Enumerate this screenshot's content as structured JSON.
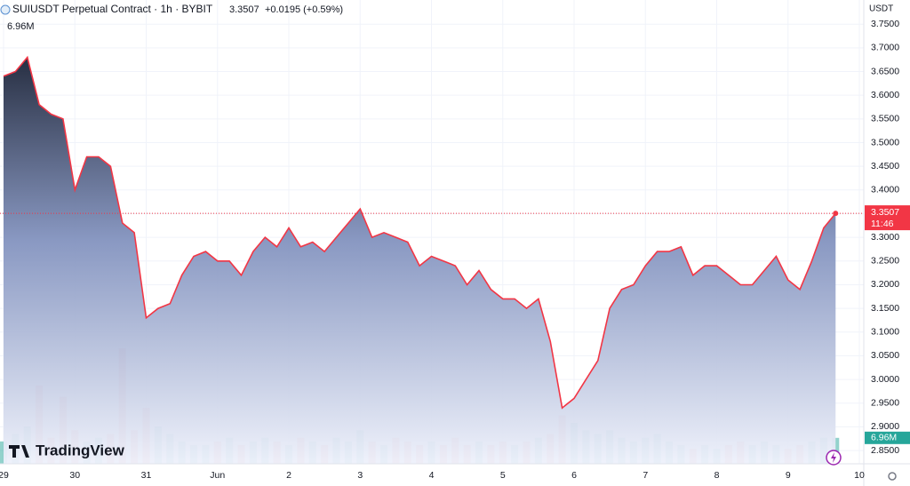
{
  "chart_data": {
    "type": "area",
    "title": "SUIUSDT Perpetual Contract · 1h · BYBIT",
    "change": "+0.0195 (+0.59%)",
    "price_unit": "USDT",
    "countdown": "11:46",
    "brand": "TradingView",
    "color": "#f23645",
    "grid": true,
    "categories": [
      "29",
      null,
      null,
      null,
      null,
      null,
      "30",
      null,
      null,
      null,
      null,
      null,
      "31",
      null,
      null,
      null,
      null,
      null,
      "Jun",
      null,
      null,
      null,
      null,
      null,
      "2",
      null,
      null,
      null,
      null,
      null,
      "3",
      null,
      null,
      null,
      null,
      null,
      "4",
      null,
      null,
      null,
      null,
      null,
      "5",
      null,
      null,
      null,
      null,
      null,
      "6",
      null,
      null,
      null,
      null,
      null,
      "7",
      null,
      null,
      null,
      null,
      null,
      "8",
      null,
      null,
      null,
      null,
      null,
      "9",
      null,
      null,
      null,
      null,
      null,
      "10"
    ],
    "values": [
      3.64,
      3.65,
      3.68,
      3.58,
      3.56,
      3.55,
      3.4,
      3.47,
      3.47,
      3.45,
      3.33,
      3.31,
      3.13,
      3.15,
      3.16,
      3.22,
      3.26,
      3.27,
      3.25,
      3.25,
      3.22,
      3.27,
      3.3,
      3.28,
      3.32,
      3.28,
      3.29,
      3.27,
      3.3,
      3.33,
      3.36,
      3.3,
      3.31,
      3.3,
      3.29,
      3.24,
      3.26,
      3.25,
      3.24,
      3.2,
      3.23,
      3.19,
      3.17,
      3.17,
      3.15,
      3.17,
      3.08,
      2.94,
      2.96,
      3.0,
      3.04,
      3.15,
      3.19,
      3.2,
      3.24,
      3.27,
      3.27,
      3.28,
      3.22,
      3.24,
      3.24,
      3.22,
      3.2,
      3.2,
      3.23,
      3.26,
      3.21,
      3.19,
      3.25,
      3.32,
      3.3507,
      null,
      null
    ],
    "volume": {
      "values": [
        6,
        8,
        10,
        21,
        7,
        18,
        9,
        6,
        7,
        8,
        31,
        9,
        15,
        10,
        8,
        6,
        5,
        5,
        6,
        7,
        5,
        6,
        7,
        6,
        5,
        7,
        6,
        5,
        7,
        6,
        9,
        6,
        5,
        7,
        6,
        5,
        6,
        5,
        7,
        5,
        6,
        5,
        6,
        5,
        6,
        7,
        8,
        13,
        11,
        9,
        8,
        9,
        7,
        6,
        7,
        8,
        6,
        5,
        4,
        5,
        4,
        5,
        6,
        5,
        6,
        5,
        4,
        5,
        6,
        7,
        6.96,
        null,
        null
      ],
      "value_labels": [
        null,
        null,
        null,
        null,
        null,
        null,
        null,
        null,
        null,
        null,
        null,
        null,
        null,
        null,
        null,
        null,
        null,
        null,
        null,
        null,
        null,
        null,
        null,
        null,
        null,
        null,
        null,
        null,
        null,
        null,
        null,
        null,
        null,
        null,
        null,
        null,
        null,
        null,
        null,
        null,
        null,
        null,
        null,
        null,
        null,
        null,
        null,
        null,
        null,
        null,
        null,
        null,
        null,
        null,
        null,
        null,
        null,
        null,
        null,
        null,
        null,
        null,
        null,
        null,
        null,
        null,
        null,
        null,
        null,
        null,
        "6.96M",
        null,
        null
      ],
      "up_color": "#26a69a",
      "down_color": "#ef5350"
    },
    "ylim": [
      2.822,
      3.801
    ],
    "yticks": [
      {
        "value": 3.75,
        "label": "3.7500"
      },
      {
        "value": 3.7,
        "label": "3.7000"
      },
      {
        "value": 3.65,
        "label": "3.6500"
      },
      {
        "value": 3.6,
        "label": "3.6000"
      },
      {
        "value": 3.55,
        "label": "3.5500"
      },
      {
        "value": 3.5,
        "label": "3.5000"
      },
      {
        "value": 3.45,
        "label": "3.4500"
      },
      {
        "value": 3.4,
        "label": "3.4000"
      },
      {
        "value": 3.35,
        "label": "3.3500"
      },
      {
        "value": 3.3,
        "label": "3.3000"
      },
      {
        "value": 3.25,
        "label": "3.2500"
      },
      {
        "value": 3.2,
        "label": "3.2000"
      },
      {
        "value": 3.15,
        "label": "3.1500"
      },
      {
        "value": 3.1,
        "label": "3.1000"
      },
      {
        "value": 3.05,
        "label": "3.0500"
      },
      {
        "value": 3.0,
        "label": "3.0000"
      },
      {
        "value": 2.95,
        "label": "2.9500"
      },
      {
        "value": 2.9,
        "label": "2.9000"
      },
      {
        "value": 2.85,
        "label": "2.8500"
      }
    ]
  }
}
